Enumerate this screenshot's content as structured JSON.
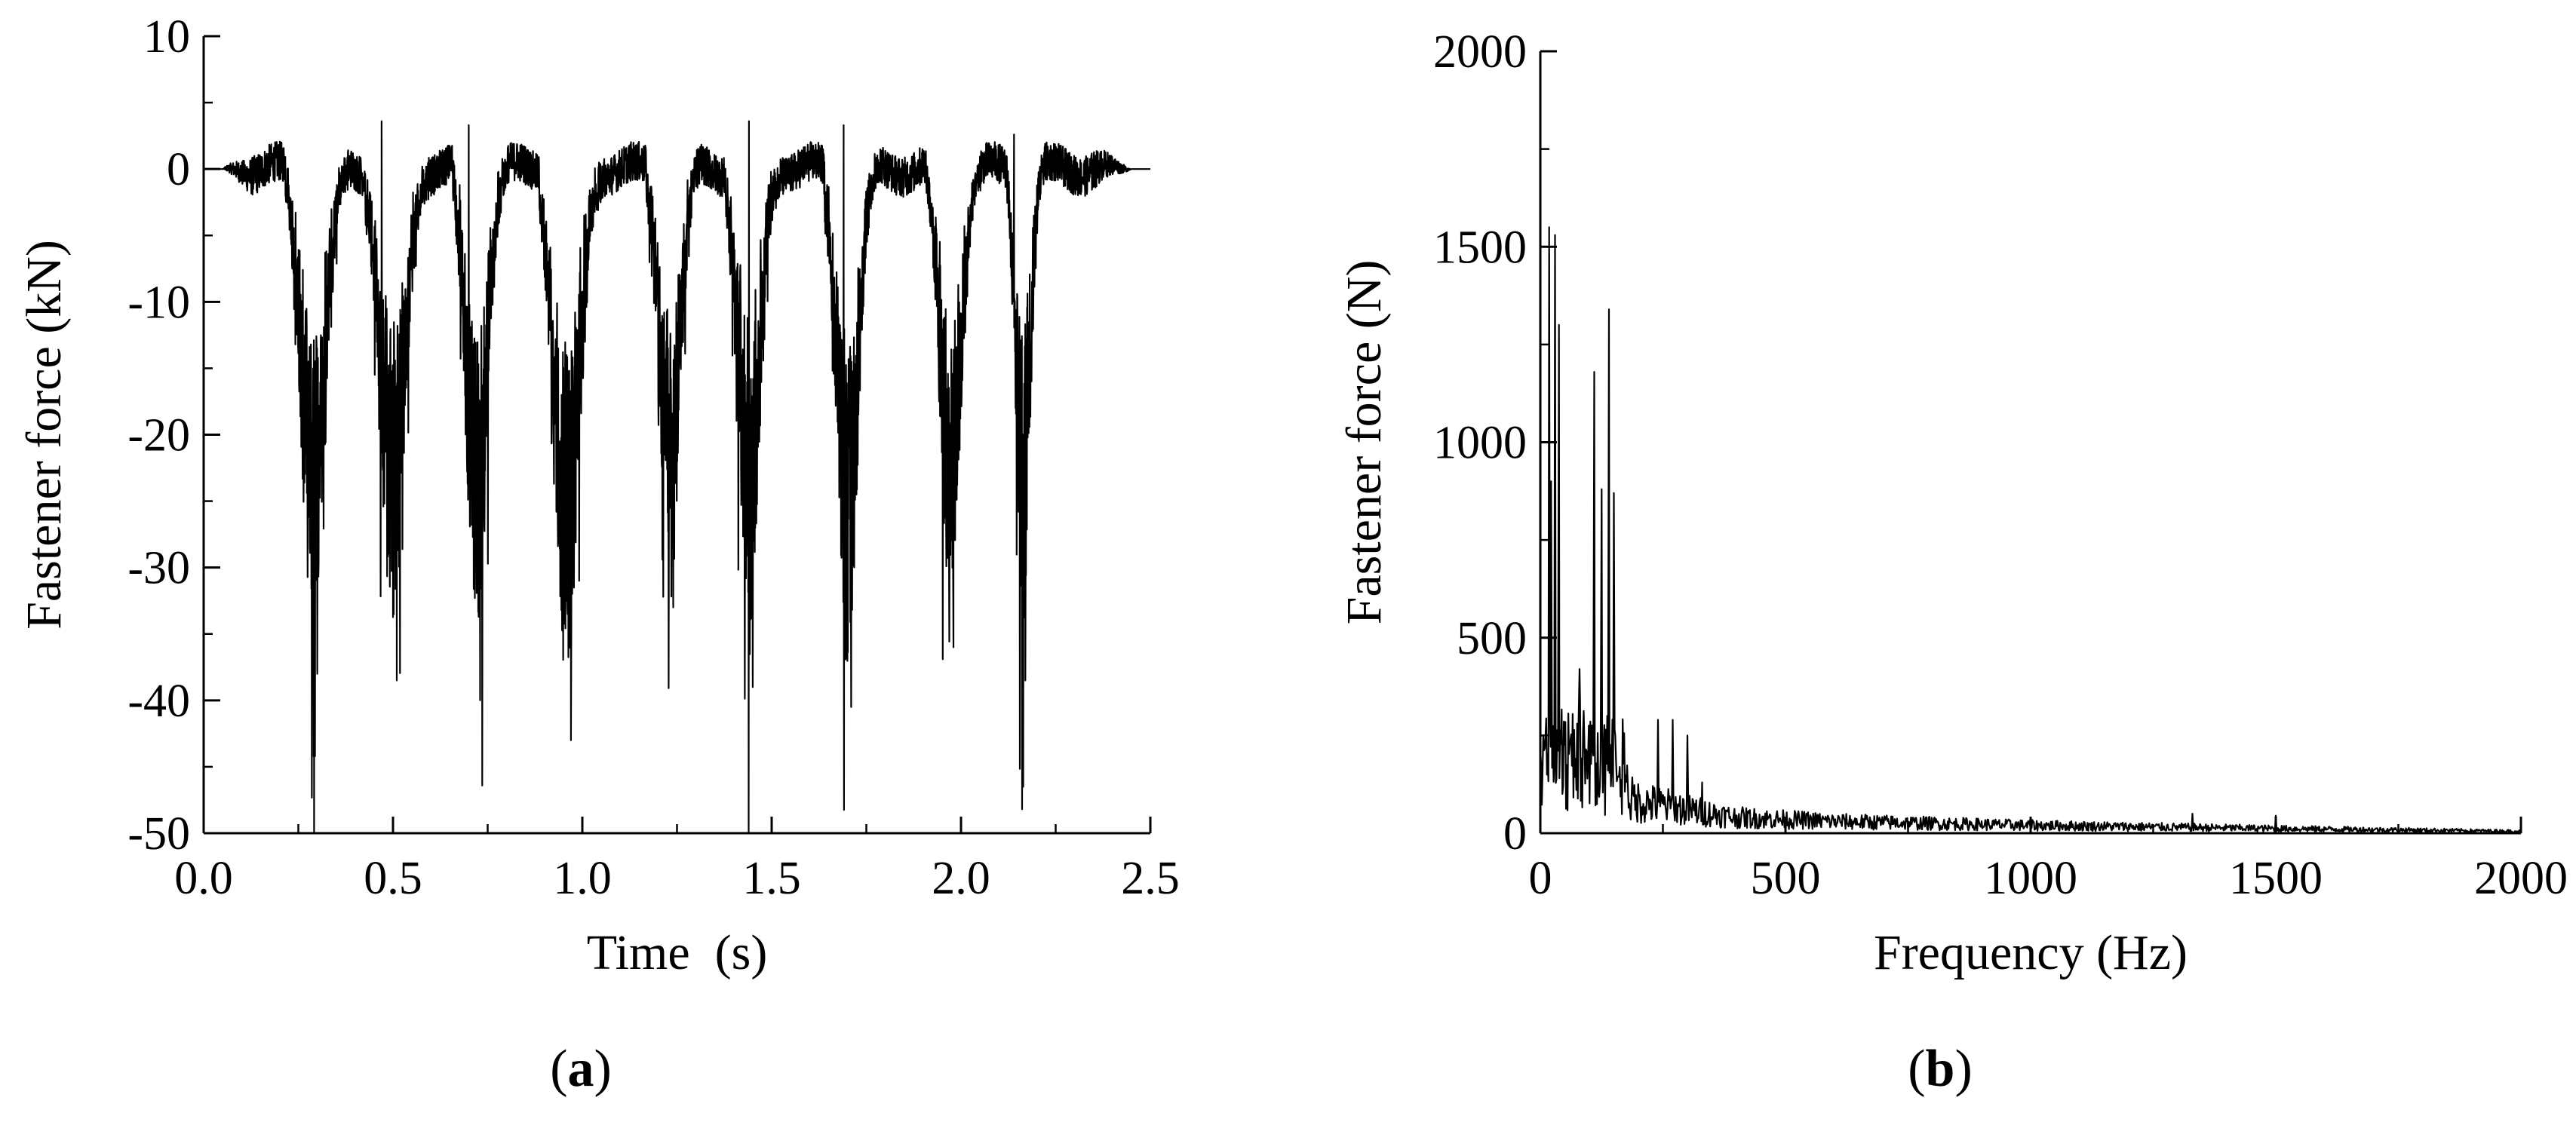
{
  "figure": {
    "panels": [
      {
        "open": "(",
        "letter": "a",
        "close": ")"
      },
      {
        "open": "(",
        "letter": "b",
        "close": ")"
      }
    ]
  },
  "chart_data": [
    {
      "type": "line",
      "panel_label": "(a)",
      "xlabel": "Time  (s)",
      "ylabel": "Fastener force (kN)",
      "xlim": [
        0.0,
        2.5
      ],
      "ylim": [
        -50,
        10
      ],
      "x_ticks": [
        0.0,
        0.5,
        1.0,
        1.5,
        2.0,
        2.5
      ],
      "x_tick_labels": [
        "0.0",
        "0.5",
        "1.0",
        "1.5",
        "2.0",
        "2.5"
      ],
      "y_ticks": [
        10,
        0,
        -10,
        -20,
        -30,
        -40,
        -50
      ],
      "y_tick_labels": [
        "10",
        "0",
        "-10",
        "-20",
        "-30",
        "-40",
        "-50"
      ],
      "grid": false,
      "color": "#000000",
      "baseline_noise_amplitude": 1.5,
      "signal_span": [
        0.05,
        2.45
      ],
      "wheel_passage_peaks": [
        {
          "x": 0.3,
          "y": -38
        },
        {
          "x": 0.51,
          "y": -38.5
        },
        {
          "x": 0.73,
          "y": -40
        },
        {
          "x": 0.97,
          "y": -43
        },
        {
          "x": 1.24,
          "y": -33
        },
        {
          "x": 1.45,
          "y": -39
        },
        {
          "x": 1.71,
          "y": -40.5
        },
        {
          "x": 1.98,
          "y": -36
        },
        {
          "x": 2.17,
          "y": -38.5
        }
      ],
      "dip_widths": [
        0.07,
        0.07,
        0.06,
        0.07,
        0.06,
        0.06,
        0.06,
        0.06,
        0.04
      ],
      "positive_spikes": [
        {
          "x": 0.47,
          "y": 3.6
        },
        {
          "x": 0.7,
          "y": 3.3
        },
        {
          "x": 1.44,
          "y": 3.6
        },
        {
          "x": 1.69,
          "y": 3.3
        },
        {
          "x": 2.14,
          "y": 2.6
        }
      ]
    },
    {
      "type": "line",
      "panel_label": "(b)",
      "xlabel": "Frequency (Hz)",
      "ylabel": "Fastener force (N)",
      "xlim": [
        0,
        2000
      ],
      "ylim": [
        0,
        2000
      ],
      "x_ticks": [
        0,
        500,
        1000,
        1500,
        2000
      ],
      "x_tick_labels": [
        "0",
        "500",
        "1000",
        "1500",
        "2000"
      ],
      "y_ticks": [
        0,
        500,
        1000,
        1500,
        2000
      ],
      "y_tick_labels": [
        "0",
        "500",
        "1000",
        "1500",
        "2000"
      ],
      "grid": false,
      "color": "#000000",
      "spectral_peaks": [
        {
          "x": 18,
          "y": 1550
        },
        {
          "x": 30,
          "y": 1530
        },
        {
          "x": 38,
          "y": 1300
        },
        {
          "x": 22,
          "y": 900
        },
        {
          "x": 110,
          "y": 1180
        },
        {
          "x": 125,
          "y": 880
        },
        {
          "x": 140,
          "y": 1340
        },
        {
          "x": 150,
          "y": 870
        },
        {
          "x": 80,
          "y": 420
        },
        {
          "x": 240,
          "y": 290
        },
        {
          "x": 270,
          "y": 290
        },
        {
          "x": 300,
          "y": 250
        },
        {
          "x": 330,
          "y": 130
        },
        {
          "x": 1330,
          "y": 50
        },
        {
          "x": 1500,
          "y": 45
        }
      ],
      "noise_floor": [
        {
          "x": 50,
          "y": 150
        },
        {
          "x": 200,
          "y": 80
        },
        {
          "x": 400,
          "y": 40
        },
        {
          "x": 600,
          "y": 30
        },
        {
          "x": 1000,
          "y": 20
        },
        {
          "x": 1500,
          "y": 12
        },
        {
          "x": 2000,
          "y": 5
        }
      ]
    }
  ]
}
